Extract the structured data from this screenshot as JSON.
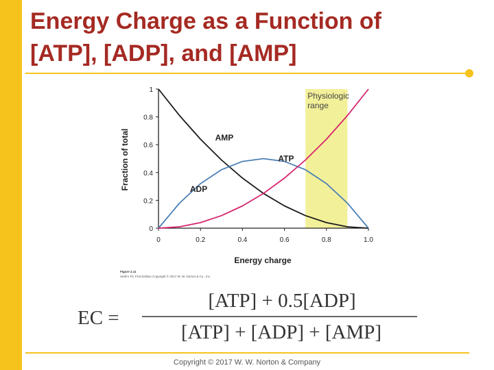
{
  "slide": {
    "title_line1": "Energy Charge as a Function of",
    "title_line2": "[ATP], [ADP], and [AMP]",
    "copyright": "Copyright © 2017 W. W. Norton & Company",
    "accent_color": "#f6c31c",
    "title_color": "#a52a23"
  },
  "figure": {
    "caption_line1": "Figure 2.11",
    "caption_line2": "Sethi's Fit, First Edition Copyright © 2017 W. W. Norton & Co., Inc."
  },
  "equation": {
    "lhs": "EC =",
    "numerator": "[ATP] + 0.5[ADP]",
    "denominator": "[ATP] + [ADP] + [AMP]"
  },
  "chart_data": {
    "type": "line",
    "xlabel": "Energy charge",
    "ylabel": "Fraction of total",
    "xlim": [
      0,
      1.0
    ],
    "ylim": [
      0,
      1
    ],
    "x_ticks": [
      "0",
      "0.2",
      "0.4",
      "0.6",
      "0.8",
      "1.0"
    ],
    "y_ticks": [
      "0",
      "0.2",
      "0.4",
      "0.6",
      "0.8",
      "1"
    ],
    "x": [
      0,
      0.1,
      0.2,
      0.3,
      0.4,
      0.5,
      0.6,
      0.7,
      0.8,
      0.9,
      1.0
    ],
    "series": [
      {
        "name": "AMP",
        "color": "#1a1a1a",
        "values": [
          1,
          0.81,
          0.64,
          0.49,
          0.36,
          0.25,
          0.16,
          0.09,
          0.04,
          0.01,
          0
        ]
      },
      {
        "name": "ADP",
        "color": "#4a7fb5",
        "values": [
          0,
          0.18,
          0.32,
          0.42,
          0.48,
          0.5,
          0.48,
          0.42,
          0.32,
          0.18,
          0
        ]
      },
      {
        "name": "ATP",
        "color": "#d6246e",
        "values": [
          0,
          0.01,
          0.04,
          0.09,
          0.16,
          0.25,
          0.36,
          0.49,
          0.64,
          0.81,
          1
        ]
      }
    ],
    "labels": [
      {
        "series": "AMP",
        "text": "AMP",
        "x": 0.27,
        "y": 0.63
      },
      {
        "series": "ATP",
        "text": "ATP",
        "x": 0.57,
        "y": 0.48
      },
      {
        "series": "ADP",
        "text": "ADP",
        "x": 0.15,
        "y": 0.26
      }
    ],
    "highlight": {
      "label_line1": "Physiologic",
      "label_line2": "range",
      "x_start": 0.7,
      "x_end": 0.9,
      "color": "#f3f09a"
    },
    "grid": false
  }
}
